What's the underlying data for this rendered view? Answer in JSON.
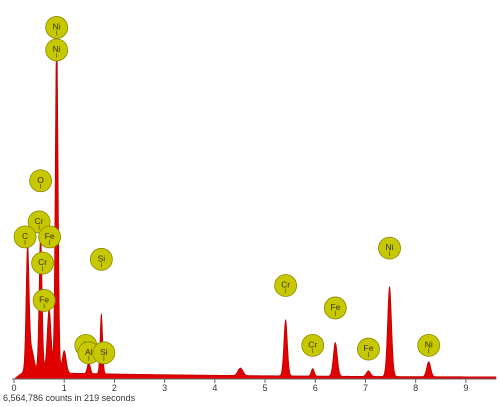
{
  "chart_data": {
    "type": "area",
    "title": "",
    "xlabel": "",
    "ylabel": "",
    "xlim": [
      0,
      9.6
    ],
    "ylim": [
      0,
      1.0
    ],
    "x_ticks": [
      0,
      1,
      2,
      3,
      4,
      5,
      6,
      7,
      8,
      9
    ],
    "grid": false,
    "legend": "none",
    "fill_color": "#e00000",
    "marker_color": "#c8c800",
    "counts_text": "6,564,786 counts in 219 seconds",
    "peaks": [
      {
        "center": 0.27,
        "height": 0.33,
        "width": 0.03
      },
      {
        "center": 0.35,
        "height": 0.06,
        "width": 0.05
      },
      {
        "center": 0.53,
        "height": 0.37,
        "width": 0.03
      },
      {
        "center": 0.7,
        "height": 0.17,
        "width": 0.04
      },
      {
        "center": 0.85,
        "height": 0.92,
        "width": 0.028
      },
      {
        "center": 1.0,
        "height": 0.06,
        "width": 0.04
      },
      {
        "center": 1.49,
        "height": 0.03,
        "width": 0.03
      },
      {
        "center": 1.74,
        "height": 0.16,
        "width": 0.025
      },
      {
        "center": 4.51,
        "height": 0.02,
        "width": 0.05
      },
      {
        "center": 5.41,
        "height": 0.15,
        "width": 0.035
      },
      {
        "center": 5.95,
        "height": 0.02,
        "width": 0.03
      },
      {
        "center": 6.4,
        "height": 0.09,
        "width": 0.04
      },
      {
        "center": 7.06,
        "height": 0.015,
        "width": 0.04
      },
      {
        "center": 7.48,
        "height": 0.24,
        "width": 0.04
      },
      {
        "center": 8.26,
        "height": 0.04,
        "width": 0.04
      }
    ],
    "annotations": [
      {
        "label": "Ni",
        "x": 0.85,
        "y": 0.94
      },
      {
        "label": "Ni",
        "x": 0.85,
        "y": 0.88
      },
      {
        "label": "O",
        "x": 0.53,
        "y": 0.53
      },
      {
        "label": "Cr",
        "x": 0.5,
        "y": 0.42
      },
      {
        "label": "C",
        "x": 0.22,
        "y": 0.38
      },
      {
        "label": "Fe",
        "x": 0.71,
        "y": 0.38
      },
      {
        "label": "Cr",
        "x": 0.57,
        "y": 0.31
      },
      {
        "label": "Fe",
        "x": 0.6,
        "y": 0.21
      },
      {
        "label": "Si",
        "x": 1.74,
        "y": 0.32
      },
      {
        "label": "Al",
        "x": 1.43,
        "y": 0.09
      },
      {
        "label": "Al",
        "x": 1.49,
        "y": 0.07
      },
      {
        "label": "Si",
        "x": 1.79,
        "y": 0.07
      },
      {
        "label": "Cr",
        "x": 5.41,
        "y": 0.25
      },
      {
        "label": "Cr",
        "x": 5.95,
        "y": 0.09
      },
      {
        "label": "Fe",
        "x": 6.4,
        "y": 0.19
      },
      {
        "label": "Fe",
        "x": 7.06,
        "y": 0.08
      },
      {
        "label": "Ni",
        "x": 7.48,
        "y": 0.35
      },
      {
        "label": "Ni",
        "x": 8.26,
        "y": 0.09
      }
    ]
  }
}
